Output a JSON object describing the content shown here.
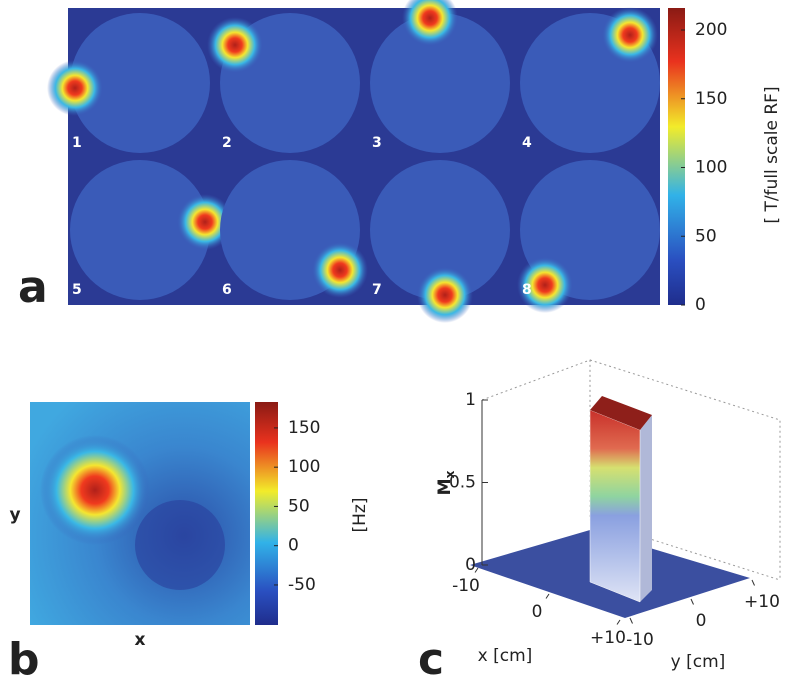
{
  "chart_data": [
    {
      "type": "heatmap-grid",
      "panel_label": "a",
      "tiles": [
        "1",
        "2",
        "3",
        "4",
        "5",
        "6",
        "7",
        "8"
      ],
      "colorbar_label": "[ T/full scale RF]",
      "clim": [
        0,
        216
      ],
      "cticks": [
        0,
        50,
        100,
        150,
        200
      ]
    },
    {
      "type": "heatmap",
      "panel_label": "b",
      "xlabel": "x",
      "ylabel": "y",
      "colorbar_label": "[Hz]",
      "clim": [
        -101,
        183
      ],
      "cticks": [
        -50,
        0,
        50,
        100,
        150
      ]
    },
    {
      "type": "surface3d",
      "panel_label": "c",
      "zlabel": "M",
      "zlabel_sub": "x",
      "zlim": [
        0,
        1
      ],
      "zticks": [
        0,
        0.5,
        1
      ],
      "xlabel": "x [cm]",
      "xlim": [
        -10,
        10
      ],
      "xticks": [
        -10,
        0,
        {
          "value": 10,
          "label": "+10"
        }
      ],
      "ylabel": "y [cm]",
      "ylim": [
        -10,
        10
      ],
      "yticks": [
        -10,
        0,
        {
          "value": 10,
          "label": "+10"
        }
      ]
    }
  ]
}
